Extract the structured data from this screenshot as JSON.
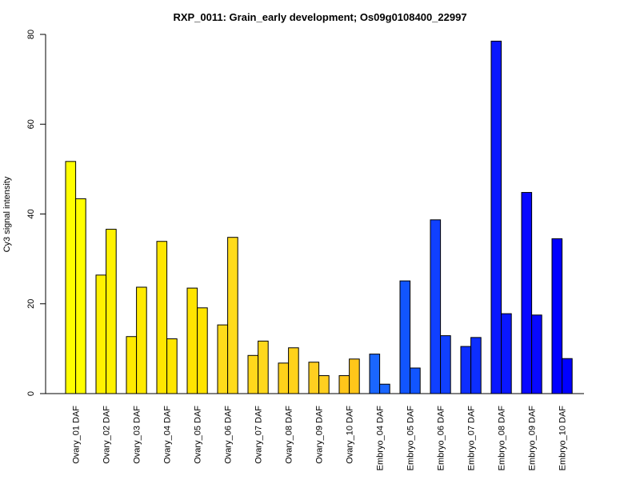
{
  "chart_data": {
    "type": "bar",
    "title": "RXP_0011: Grain_early development; Os09g0108400_22997",
    "xlabel": "",
    "ylabel": "Cy3 signal intensity",
    "ylim": [
      0,
      80
    ],
    "yticks": [
      "0",
      "20",
      "40",
      "60",
      "80"
    ],
    "categories": [
      "Ovary_01 DAF",
      "Ovary_02 DAF",
      "Ovary_03 DAF",
      "Ovary_04 DAF",
      "Ovary_05 DAF",
      "Ovary_06 DAF",
      "Ovary_07 DAF",
      "Ovary_08 DAF",
      "Ovary_09 DAF",
      "Ovary_10 DAF",
      "Embryo_04 DAF",
      "Embryo_05 DAF",
      "Embryo_06 DAF",
      "Embryo_07 DAF",
      "Embryo_08 DAF",
      "Embryo_09 DAF",
      "Embryo_10 DAF"
    ],
    "series": [
      {
        "values": [
          51.7,
          26.4,
          12.7,
          33.9,
          23.5,
          15.3,
          8.5,
          6.8,
          7.0,
          4.0,
          8.8,
          25.1,
          38.7,
          10.5,
          78.5,
          44.8,
          34.5
        ]
      },
      {
        "values": [
          43.4,
          36.6,
          23.7,
          12.2,
          19.1,
          34.8,
          11.7,
          10.2,
          4.0,
          7.7,
          2.1,
          5.7,
          12.9,
          12.5,
          17.8,
          17.5,
          7.8
        ]
      }
    ],
    "colors": [
      "#ffff00",
      "#fff200",
      "#ffea00",
      "#ffe600",
      "#ffe400",
      "#ffdb1a",
      "#ffd81c",
      "#ffd21a",
      "#ffcf20",
      "#ffc61a",
      "#1a66ff",
      "#1155ff",
      "#1040ff",
      "#0d2eff",
      "#0a17ff",
      "#0808ff",
      "#0000ff"
    ],
    "grid": false,
    "legend": "none"
  }
}
